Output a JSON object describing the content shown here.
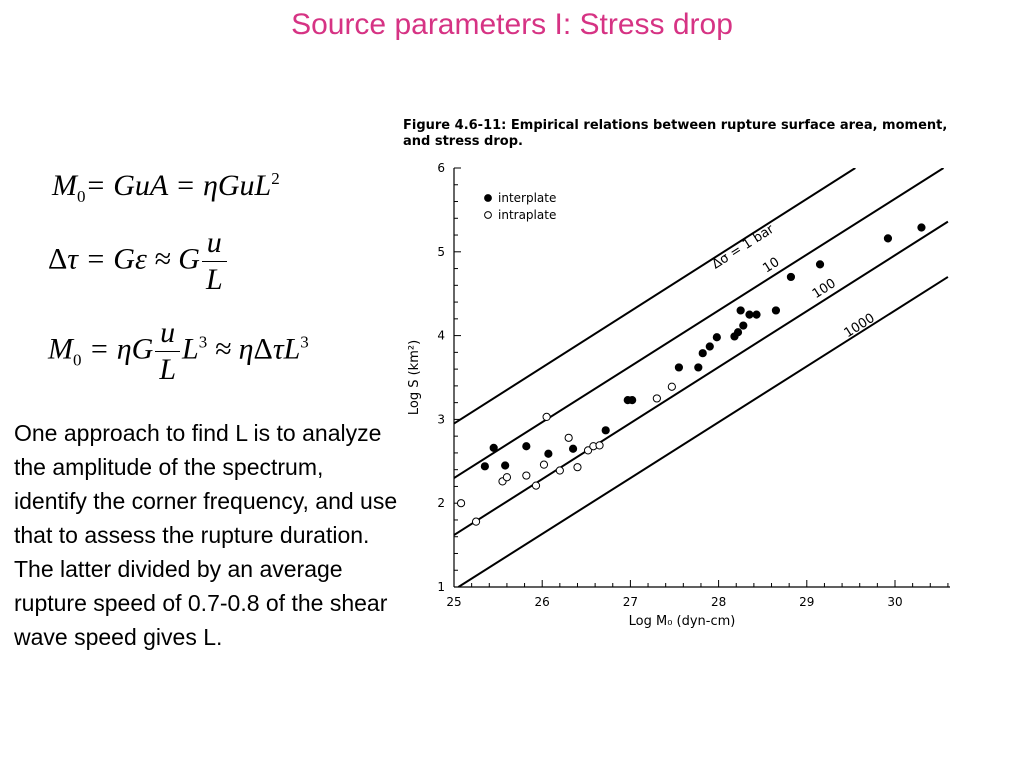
{
  "slide": {
    "title": "Source parameters I: Stress drop",
    "body_text": "One approach to find L is to analyze the amplitude of the spectrum, identify the corner frequency, and use that to assess the rupture duration. The latter divided by an average rupture speed of 0.7-0.8 of the shear wave speed gives L."
  },
  "equations": {
    "eq1": {
      "lhs": "M",
      "lhs_sub": "0",
      "rhs1": "= GuA = ",
      "eta": "η",
      "rhs2": "GuL",
      "sup": "2"
    },
    "eq2": {
      "delta": "Δ",
      "tau": "τ",
      "eq": " = G",
      "eps": "ε",
      "approx": " ≈ G",
      "num": "u",
      "den": "L"
    },
    "eq3": {
      "lhs": "M",
      "lhs_sub": "0",
      "eq": " = ",
      "eta": "η",
      "g": "G",
      "num": "u",
      "den": "L",
      "l": "L",
      "sup": "3",
      "approx": " ≈ ",
      "eta2": "η",
      "delta": "Δ",
      "tau": "τ",
      "l2": "L",
      "sup2": "3"
    }
  },
  "figure": {
    "caption": "Figure 4.6-11: Empirical relations between rupture surface area, moment, and stress drop."
  },
  "chart_data": {
    "type": "scatter",
    "xlabel": "Log M₀ (dyn-cm)",
    "ylabel": "Log S (km²)",
    "xlim": [
      25,
      30.6
    ],
    "ylim": [
      1,
      6
    ],
    "xticks": [
      25,
      26,
      27,
      28,
      29,
      30
    ],
    "yticks": [
      1,
      2,
      3,
      4,
      5,
      6
    ],
    "grid": false,
    "legend": {
      "placement": "top-left",
      "entries": [
        "interplate",
        "intraplate"
      ]
    },
    "series": [
      {
        "name": "interplate",
        "marker": "filled-circle",
        "x": [
          25.35,
          25.45,
          25.58,
          25.82,
          26.07,
          26.35,
          26.72,
          26.97,
          27.02,
          27.55,
          27.77,
          27.82,
          27.9,
          27.98,
          28.18,
          28.22,
          28.25,
          28.28,
          28.35,
          28.43,
          28.65,
          28.82,
          29.15,
          29.92,
          30.3
        ],
        "y": [
          2.44,
          2.66,
          2.45,
          2.68,
          2.59,
          2.65,
          2.87,
          3.23,
          3.23,
          3.62,
          3.62,
          3.79,
          3.87,
          3.98,
          3.99,
          4.04,
          4.3,
          4.12,
          4.25,
          4.25,
          4.3,
          4.7,
          4.85,
          5.16,
          5.29
        ]
      },
      {
        "name": "intraplate",
        "marker": "open-circle",
        "x": [
          25.08,
          25.25,
          25.55,
          25.6,
          25.82,
          25.93,
          26.02,
          26.05,
          26.2,
          26.3,
          26.4,
          26.52,
          26.58,
          26.65,
          27.3,
          27.47
        ],
        "y": [
          2.0,
          1.78,
          2.26,
          2.31,
          2.33,
          2.21,
          2.46,
          3.03,
          2.39,
          2.78,
          2.43,
          2.63,
          2.68,
          2.69,
          3.25,
          3.39
        ]
      }
    ],
    "reference_lines": [
      {
        "label": "Δσ = 1 bar",
        "x1": 25.0,
        "y1": 2.95,
        "x2": 29.55,
        "y2": 6.0
      },
      {
        "label": "10",
        "x1": 25.0,
        "y1": 2.3,
        "x2": 30.55,
        "y2": 6.0
      },
      {
        "label": "100",
        "x1": 25.0,
        "y1": 1.62,
        "x2": 30.6,
        "y2": 5.36
      },
      {
        "label": "1000",
        "x1": 25.05,
        "y1": 1.0,
        "x2": 30.6,
        "y2": 4.7
      }
    ],
    "line_label_positions": [
      {
        "label": "Δσ = 1 bar",
        "x": 28.3,
        "y": 5.02
      },
      {
        "label": "10",
        "x": 28.62,
        "y": 4.8
      },
      {
        "label": "100",
        "x": 29.22,
        "y": 4.52
      },
      {
        "label": "1000",
        "x": 29.62,
        "y": 4.08
      }
    ]
  }
}
